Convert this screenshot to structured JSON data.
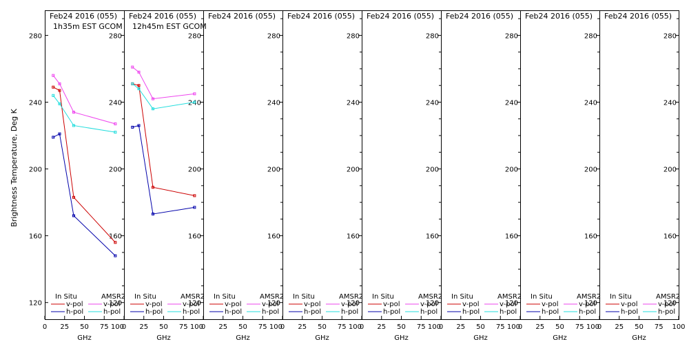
{
  "chart_data": {
    "type": "line",
    "ylabel": "Brightness Temperature, Deg K",
    "xlabel": "GHz",
    "xlim": [
      0,
      100
    ],
    "ylim": [
      110,
      295
    ],
    "xticks": [
      0,
      25,
      50,
      75,
      100
    ],
    "yticks": [
      120,
      160,
      200,
      240,
      280
    ],
    "legend": {
      "in_situ_header": "In Situ",
      "amsr2_header": "AMSR2",
      "vpol": "v-pol",
      "hpol": "h-pol"
    },
    "colors": {
      "insitu_v": "#cc0000",
      "insitu_h": "#0000aa",
      "amsr2_v": "#ee44ee",
      "amsr2_h": "#22dddd"
    },
    "panels": [
      {
        "title": "Feb24 2016 (055)",
        "subtitle": "1h35m EST GCOM",
        "series": [
          {
            "name": "In Situ v-pol",
            "x": [
              10.65,
              18.7,
              36.5,
              89
            ],
            "y": [
              249,
              247,
              183,
              156
            ]
          },
          {
            "name": "In Situ h-pol",
            "x": [
              10.65,
              18.7,
              36.5,
              89
            ],
            "y": [
              219,
              221,
              172,
              148
            ]
          },
          {
            "name": "AMSR2 v-pol",
            "x": [
              10.65,
              18.7,
              36.5,
              89
            ],
            "y": [
              256,
              251,
              234,
              227
            ]
          },
          {
            "name": "AMSR2 h-pol",
            "x": [
              10.65,
              18.7,
              36.5,
              89
            ],
            "y": [
              244,
              239,
              226,
              222
            ]
          }
        ]
      },
      {
        "title": "Feb24 2016 (055)",
        "subtitle": "12h45m EST GCOM",
        "series": [
          {
            "name": "In Situ v-pol",
            "x": [
              10.65,
              18.7,
              36.5,
              89
            ],
            "y": [
              251,
              250,
              189,
              184
            ]
          },
          {
            "name": "In Situ h-pol",
            "x": [
              10.65,
              18.7,
              36.5,
              89
            ],
            "y": [
              225,
              226,
              173,
              177
            ]
          },
          {
            "name": "AMSR2 v-pol",
            "x": [
              10.65,
              18.7,
              36.5,
              89
            ],
            "y": [
              261,
              258,
              242,
              245
            ]
          },
          {
            "name": "AMSR2 h-pol",
            "x": [
              10.65,
              18.7,
              36.5,
              89
            ],
            "y": [
              251,
              248,
              236,
              240
            ]
          }
        ]
      },
      {
        "title": "Feb24 2016 (055)",
        "subtitle": "",
        "series": []
      },
      {
        "title": "Feb24 2016 (055)",
        "subtitle": "",
        "series": []
      },
      {
        "title": "Feb24 2016 (055)",
        "subtitle": "",
        "series": []
      },
      {
        "title": "Feb24 2016 (055)",
        "subtitle": "",
        "series": []
      },
      {
        "title": "Feb24 2016 (055)",
        "subtitle": "",
        "series": []
      },
      {
        "title": "Feb24 2016 (055)",
        "subtitle": "",
        "series": []
      }
    ]
  }
}
